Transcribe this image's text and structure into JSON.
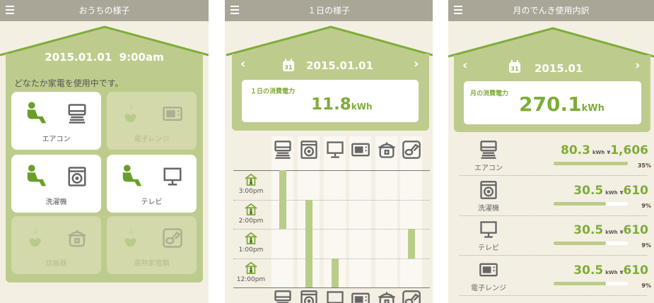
{
  "colors": {
    "header": "#a9a597",
    "house": "#bdcc8c",
    "roof": "#7fac3a",
    "accent": "#7fac3a",
    "inactive_card": "#d3d9aa",
    "background": "#f4efe3"
  },
  "home": {
    "title": "おうちの様子",
    "datetime": "2015.01.01  9:00am",
    "message": "どなたか家電を使用中です。",
    "cards": [
      {
        "label": "エアコン",
        "icon": "aircon",
        "active": true
      },
      {
        "label": "電子レンジ",
        "icon": "microwave",
        "active": false
      },
      {
        "label": "洗濯機",
        "icon": "washer",
        "active": true
      },
      {
        "label": "テレビ",
        "icon": "tv",
        "active": true
      },
      {
        "label": "炊飯器",
        "icon": "ricecooker",
        "active": false
      },
      {
        "label": "高熱家電類",
        "icon": "hotplate",
        "active": false
      }
    ]
  },
  "daily": {
    "title": "１日の様子",
    "date": "2015.01.01",
    "usage_label": "１日の消費電力",
    "usage_value": "11.8",
    "usage_unit": "kWh",
    "appliances": [
      "aircon",
      "washer",
      "tv",
      "microwave",
      "ricecooker",
      "hotplate"
    ],
    "times": [
      "3:00pm",
      "2:00pm",
      "1:00pm",
      "12:00pm"
    ],
    "usage": [
      [
        "3:00pm",
        "2:00pm"
      ],
      [
        "2:00pm",
        "1:00pm",
        "12:00pm"
      ],
      [
        "12:00pm"
      ],
      [],
      [],
      [
        "1:00pm"
      ]
    ]
  },
  "monthly": {
    "title": "月のでんき使用内訳",
    "date": "2015.01",
    "usage_label": "月の消費電力",
    "usage_value": "270.1",
    "usage_unit": "kWh",
    "items": [
      {
        "label": "エアコン",
        "icon": "aircon",
        "kwh": "80.3",
        "unit": "kWh",
        "yen_sign": "¥",
        "yen": "1,606",
        "percent": "35%",
        "bar_fill": 1.0
      },
      {
        "label": "洗濯機",
        "icon": "washer",
        "kwh": "30.5",
        "unit": "kWh",
        "yen_sign": "¥",
        "yen": "610",
        "percent": "9%",
        "bar_fill": 0.7
      },
      {
        "label": "テレビ",
        "icon": "tv",
        "kwh": "30.5",
        "unit": "kWh",
        "yen_sign": "¥",
        "yen": "610",
        "percent": "9%",
        "bar_fill": 0.7
      },
      {
        "label": "電子レンジ",
        "icon": "microwave",
        "kwh": "30.5",
        "unit": "kWh",
        "yen_sign": "¥",
        "yen": "610",
        "percent": "9%",
        "bar_fill": 0.7
      }
    ]
  }
}
